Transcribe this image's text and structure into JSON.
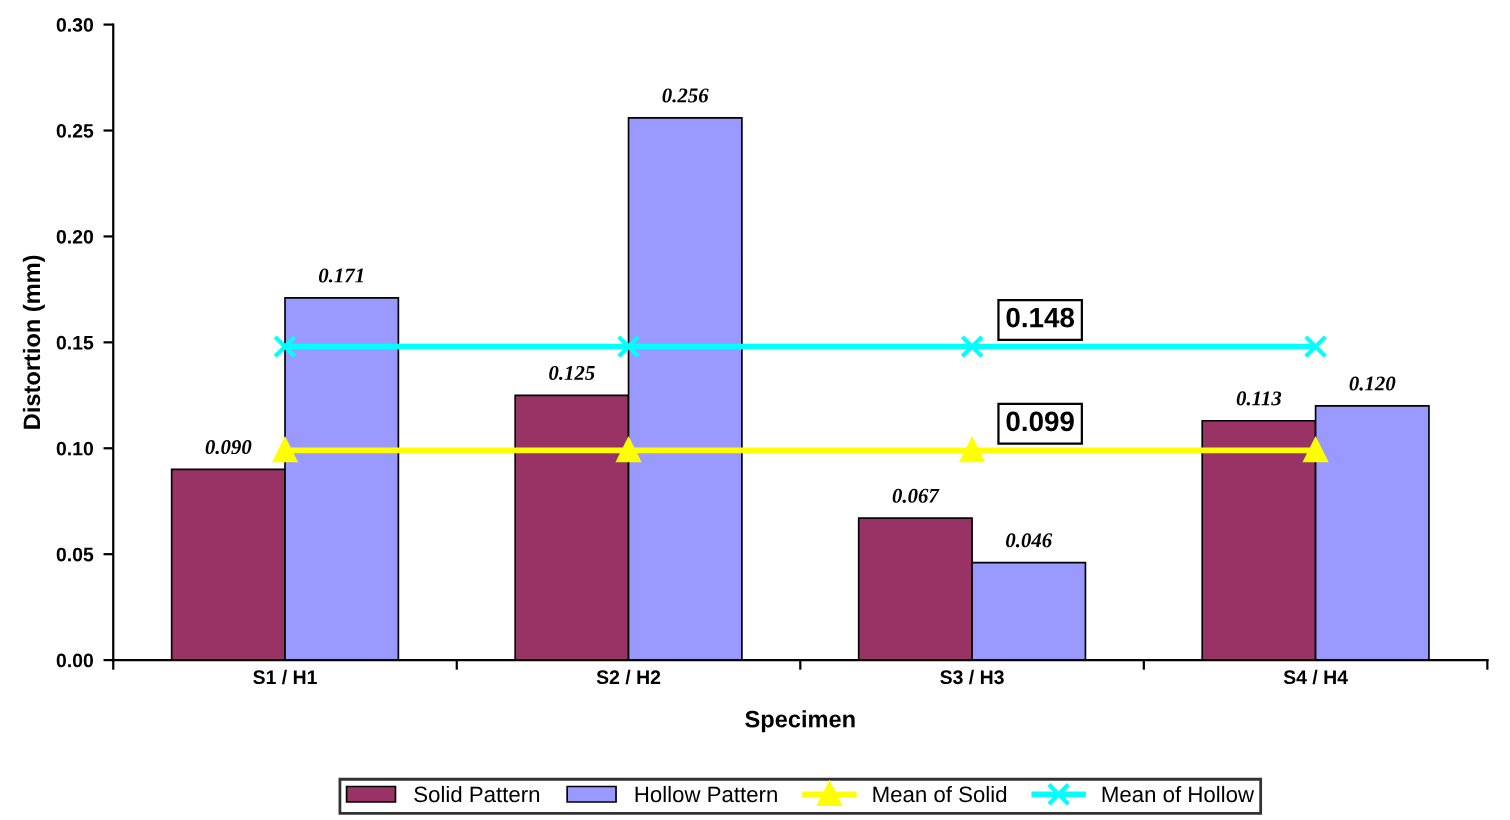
{
  "chart_data": {
    "type": "bar",
    "xlabel": "Specimen",
    "ylabel": "Distortion (mm)",
    "categories": [
      "S1 / H1",
      "S2 / H2",
      "S3 / H3",
      "S4 / H4"
    ],
    "series": [
      {
        "name": "Solid Pattern",
        "color": "#993366",
        "values": [
          0.09,
          0.125,
          0.067,
          0.113
        ],
        "value_labels": [
          "0.090",
          "0.125",
          "0.067",
          "0.113"
        ]
      },
      {
        "name": "Hollow Pattern",
        "color": "#9999ff",
        "values": [
          0.171,
          0.256,
          0.046,
          0.12
        ],
        "value_labels": [
          "0.171",
          "0.256",
          "0.046",
          "0.120"
        ]
      },
      {
        "name": "Mean of Solid",
        "type": "line",
        "color": "#ffff00",
        "marker": "triangle",
        "values": [
          0.099,
          0.099,
          0.099,
          0.099
        ]
      },
      {
        "name": "Mean of Hollow",
        "type": "line",
        "color": "#00ffff",
        "marker": "cross",
        "values": [
          0.148,
          0.148,
          0.148,
          0.148
        ]
      }
    ],
    "annotations": [
      {
        "text": "0.148",
        "x": "S3 / H3",
        "y": 0.148
      },
      {
        "text": "0.099",
        "x": "S3 / H3",
        "y": 0.099
      }
    ],
    "ylim": [
      0,
      0.3
    ],
    "yticks": [
      {
        "value": 0,
        "label": "0.00"
      },
      {
        "value": 0.05,
        "label": "0.05"
      },
      {
        "value": 0.1,
        "label": "0.10"
      },
      {
        "value": 0.15,
        "label": "0.15"
      },
      {
        "value": 0.2,
        "label": "0.20"
      },
      {
        "value": 0.25,
        "label": "0.25"
      },
      {
        "value": 0.3,
        "label": "0.30"
      }
    ],
    "legend": "bottom",
    "grid": false
  }
}
